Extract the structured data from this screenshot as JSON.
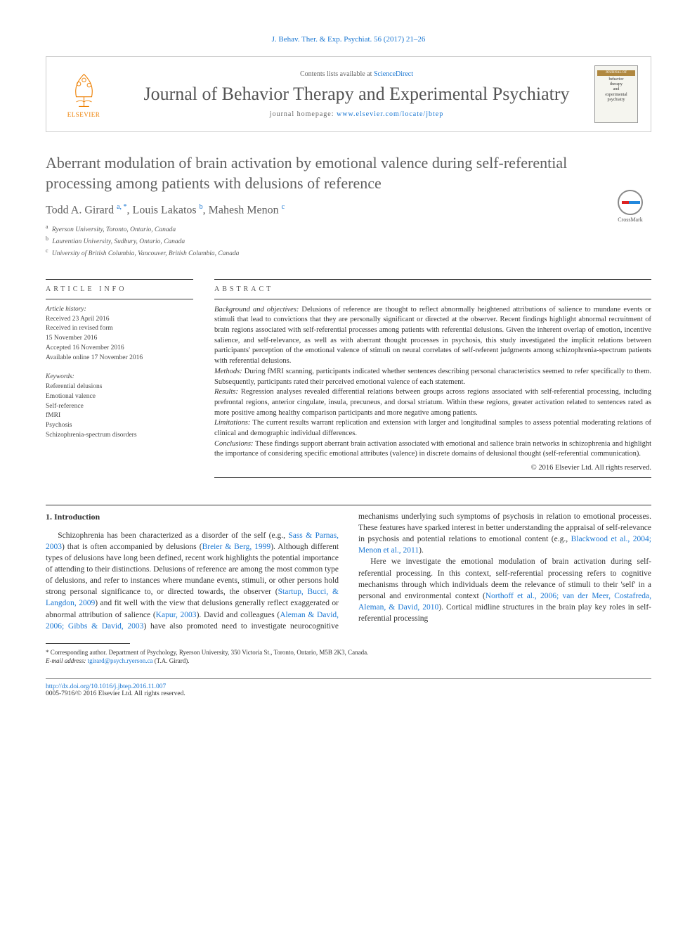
{
  "citation_top": "J. Behav. Ther. & Exp. Psychiat. 56 (2017) 21–26",
  "header": {
    "contents_prefix": "Contents lists available at ",
    "contents_link": "ScienceDirect",
    "journal_name": "Journal of Behavior Therapy and Experimental Psychiatry",
    "homepage_prefix": "journal homepage: ",
    "homepage_url": "www.elsevier.com/locate/jbtep",
    "elsevier_label": "ELSEVIER",
    "cover": {
      "line1": "JOURNAL OF",
      "line2": "behavior",
      "line3": "therapy",
      "line4": "and",
      "line5": "experimental",
      "line6": "psychiatry"
    }
  },
  "crossmark_label": "CrossMark",
  "title": "Aberrant modulation of brain activation by emotional valence during self-referential processing among patients with delusions of reference",
  "authors_html": "Todd A. Girard <sup>a, *</sup>, Louis Lakatos <sup>b</sup>, Mahesh Menon <sup>c</sup>",
  "affiliations": [
    {
      "sup": "a",
      "text": "Ryerson University, Toronto, Ontario, Canada"
    },
    {
      "sup": "b",
      "text": "Laurentian University, Sudbury, Ontario, Canada"
    },
    {
      "sup": "c",
      "text": "University of British Columbia, Vancouver, British Columbia, Canada"
    }
  ],
  "info": {
    "label": "article info",
    "history_label": "Article history:",
    "history": [
      "Received 23 April 2016",
      "Received in revised form",
      "15 November 2016",
      "Accepted 16 November 2016",
      "Available online 17 November 2016"
    ],
    "keywords_label": "Keywords:",
    "keywords": [
      "Referential delusions",
      "Emotional valence",
      "Self-reference",
      "fMRI",
      "Psychosis",
      "Schizophrenia-spectrum disorders"
    ]
  },
  "abstract": {
    "label": "abstract",
    "sections": [
      {
        "lbl": "Background and objectives:",
        "text": " Delusions of reference are thought to reflect abnormally heightened attributions of salience to mundane events or stimuli that lead to convictions that they are personally significant or directed at the observer. Recent findings highlight abnormal recruitment of brain regions associated with self-referential processes among patients with referential delusions. Given the inherent overlap of emotion, incentive salience, and self-relevance, as well as with aberrant thought processes in psychosis, this study investigated the implicit relations between participants' perception of the emotional valence of stimuli on neural correlates of self-referent judgments among schizophrenia-spectrum patients with referential delusions."
      },
      {
        "lbl": "Methods:",
        "text": " During fMRI scanning, participants indicated whether sentences describing personal characteristics seemed to refer specifically to them. Subsequently, participants rated their perceived emotional valence of each statement."
      },
      {
        "lbl": "Results:",
        "text": " Regression analyses revealed differential relations between groups across regions associated with self-referential processing, including prefrontal regions, anterior cingulate, insula, precuneus, and dorsal striatum. Within these regions, greater activation related to sentences rated as more positive among healthy comparison participants and more negative among patients."
      },
      {
        "lbl": "Limitations:",
        "text": " The current results warrant replication and extension with larger and longitudinal samples to assess potential moderating relations of clinical and demographic individual differences."
      },
      {
        "lbl": "Conclusions:",
        "text": " These findings support aberrant brain activation associated with emotional and salience brain networks in schizophrenia and highlight the importance of considering specific emotional attributes (valence) in discrete domains of delusional thought (self-referential communication)."
      }
    ],
    "copyright": "© 2016 Elsevier Ltd. All rights reserved."
  },
  "body": {
    "heading": "1. Introduction",
    "p1_a": "Schizophrenia has been characterized as a disorder of the self (e.g., ",
    "p1_l1": "Sass & Parnas, 2003",
    "p1_b": ") that is often accompanied by delusions (",
    "p1_l2": "Breier & Berg, 1999",
    "p1_c": "). Although different types of delusions have long been defined, recent work highlights the potential importance of attending to their distinctions. Delusions of reference are among the most common type of delusions, and refer to instances where mundane events, stimuli, or other persons hold strong personal significance to, or directed towards, the observer (",
    "p1_l3": "Startup, Bucci, & Langdon, 2009",
    "p1_d": ") and fit well with the view that delusions generally ",
    "p1_e": "reflect exaggerated or abnormal attribution of salience (",
    "p1_l4": "Kapur, 2003",
    "p1_f": "). David and colleagues (",
    "p1_l5": "Aleman & David, 2006; Gibbs & David, 2003",
    "p1_g": ") have also promoted need to investigate neurocognitive mechanisms underlying such symptoms of psychosis in relation to emotional processes. These features have sparked interest in better understanding the appraisal of self-relevance in psychosis and potential relations to emotional content (e.g., ",
    "p1_l6": "Blackwood et al., 2004; Menon et al., 2011",
    "p1_h": ").",
    "p2_a": "Here we investigate the emotional modulation of brain activation during self-referential processing. In this context, self-referential processing refers to cognitive mechanisms through which individuals deem the relevance of stimuli to their 'self' in a personal and environmental context (",
    "p2_l1": "Northoff et al., 2006; van der Meer, Costafreda, Aleman, & David, 2010",
    "p2_b": "). Cortical midline structures in the brain play key roles in self-referential processing "
  },
  "footnote": {
    "corr": "* Corresponding author. Department of Psychology, Ryerson University, 350 Victoria St., Toronto, Ontario, M5B 2K3, Canada.",
    "email_lbl": "E-mail address: ",
    "email": "tgirard@psych.ryerson.ca",
    "email_who": " (T.A. Girard)."
  },
  "bottom": {
    "doi": "http://dx.doi.org/10.1016/j.jbtep.2016.11.007",
    "issn": "0005-7916/© 2016 Elsevier Ltd. All rights reserved."
  },
  "colors": {
    "link": "#1976d2",
    "heading_gray": "#606060",
    "elsevier_orange": "#ee7f00"
  }
}
